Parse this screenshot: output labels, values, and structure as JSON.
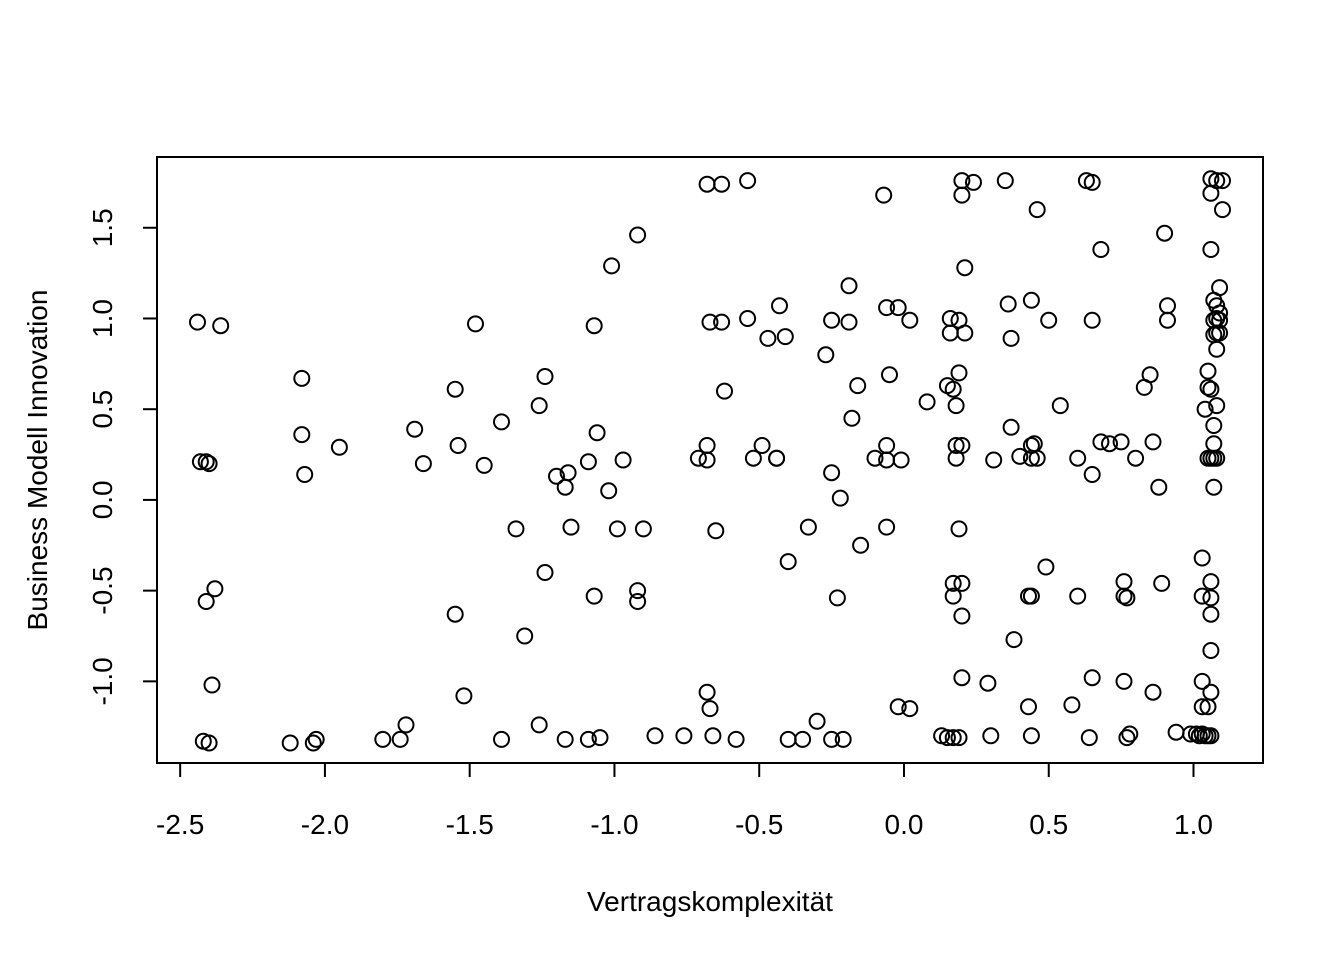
{
  "chart_data": {
    "type": "scatter",
    "title": "",
    "xlabel": "Vertragskomplexität",
    "ylabel": "Business Modell Innovation",
    "xlim": [
      -2.58,
      1.24
    ],
    "ylim": [
      -1.45,
      1.89
    ],
    "xticks": [
      -2.5,
      -2.0,
      -1.5,
      -1.0,
      -0.5,
      0.0,
      0.5,
      1.0
    ],
    "xtick_labels": [
      "-2.5",
      "-2.0",
      "-1.5",
      "-1.0",
      "-0.5",
      "0.0",
      "0.5",
      "1.0"
    ],
    "yticks": [
      -1.0,
      -0.5,
      0.0,
      0.5,
      1.0,
      1.5
    ],
    "ytick_labels": [
      "-1.0",
      "-0.5",
      "0.0",
      "0.5",
      "1.0",
      "1.5"
    ],
    "grid": false,
    "legend": false,
    "points": [
      [
        -2.44,
        0.98
      ],
      [
        -2.36,
        0.96
      ],
      [
        -2.43,
        0.21
      ],
      [
        -2.41,
        0.21
      ],
      [
        -2.4,
        0.2
      ],
      [
        -2.41,
        -0.56
      ],
      [
        -2.38,
        -0.49
      ],
      [
        -2.39,
        -1.02
      ],
      [
        -2.42,
        -1.33
      ],
      [
        -2.4,
        -1.34
      ],
      [
        -2.08,
        0.67
      ],
      [
        -2.08,
        0.36
      ],
      [
        -2.07,
        0.14
      ],
      [
        -1.95,
        0.29
      ],
      [
        -2.12,
        -1.34
      ],
      [
        -2.04,
        -1.34
      ],
      [
        -2.03,
        -1.32
      ],
      [
        -1.8,
        -1.32
      ],
      [
        -1.74,
        -1.32
      ],
      [
        -1.72,
        -1.24
      ],
      [
        -1.69,
        0.39
      ],
      [
        -1.66,
        0.2
      ],
      [
        -1.55,
        0.61
      ],
      [
        -1.54,
        0.3
      ],
      [
        -1.48,
        0.97
      ],
      [
        -1.45,
        0.19
      ],
      [
        -1.55,
        -0.63
      ],
      [
        -1.52,
        -1.08
      ],
      [
        -1.39,
        0.43
      ],
      [
        -1.39,
        -1.32
      ],
      [
        -1.34,
        -0.16
      ],
      [
        -1.31,
        -0.75
      ],
      [
        -1.26,
        0.52
      ],
      [
        -1.24,
        0.68
      ],
      [
        -1.24,
        -0.4
      ],
      [
        -1.26,
        -1.24
      ],
      [
        -1.2,
        0.13
      ],
      [
        -1.17,
        0.07
      ],
      [
        -1.16,
        0.15
      ],
      [
        -1.15,
        -0.15
      ],
      [
        -1.17,
        -1.32
      ],
      [
        -1.09,
        0.21
      ],
      [
        -1.07,
        0.96
      ],
      [
        -1.06,
        0.37
      ],
      [
        -1.07,
        -0.53
      ],
      [
        -1.09,
        -1.32
      ],
      [
        -1.05,
        -1.31
      ],
      [
        -1.01,
        1.29
      ],
      [
        -1.02,
        0.05
      ],
      [
        -0.99,
        -0.16
      ],
      [
        -0.97,
        0.22
      ],
      [
        -0.92,
        1.46
      ],
      [
        -0.92,
        -0.5
      ],
      [
        -0.92,
        -0.56
      ],
      [
        -0.9,
        -0.16
      ],
      [
        -0.86,
        -1.3
      ],
      [
        -0.76,
        -1.3
      ],
      [
        -0.71,
        0.23
      ],
      [
        -0.68,
        1.74
      ],
      [
        -0.68,
        0.3
      ],
      [
        -0.68,
        0.22
      ],
      [
        -0.67,
        0.98
      ],
      [
        -0.68,
        -1.06
      ],
      [
        -0.67,
        -1.15
      ],
      [
        -0.66,
        -1.3
      ],
      [
        -0.63,
        1.74
      ],
      [
        -0.63,
        0.98
      ],
      [
        -0.62,
        0.6
      ],
      [
        -0.65,
        -0.17
      ],
      [
        -0.58,
        -1.32
      ],
      [
        -0.54,
        1.76
      ],
      [
        -0.54,
        1.0
      ],
      [
        -0.52,
        0.23
      ],
      [
        -0.49,
        0.3
      ],
      [
        -0.47,
        0.89
      ],
      [
        -0.44,
        0.23
      ],
      [
        -0.44,
        0.23
      ],
      [
        -0.43,
        1.07
      ],
      [
        -0.41,
        0.9
      ],
      [
        -0.4,
        -0.34
      ],
      [
        -0.4,
        -1.32
      ],
      [
        -0.35,
        -1.32
      ],
      [
        -0.33,
        -0.15
      ],
      [
        -0.3,
        -1.22
      ],
      [
        -0.27,
        0.8
      ],
      [
        -0.25,
        0.99
      ],
      [
        -0.25,
        0.15
      ],
      [
        -0.23,
        -0.54
      ],
      [
        -0.22,
        0.01
      ],
      [
        -0.25,
        -1.32
      ],
      [
        -0.21,
        -1.32
      ],
      [
        -0.19,
        1.18
      ],
      [
        -0.19,
        0.98
      ],
      [
        -0.18,
        0.45
      ],
      [
        -0.16,
        0.63
      ],
      [
        -0.15,
        -0.25
      ],
      [
        -0.1,
        0.23
      ],
      [
        -0.07,
        1.68
      ],
      [
        -0.06,
        1.06
      ],
      [
        -0.06,
        0.3
      ],
      [
        -0.06,
        0.22
      ],
      [
        -0.06,
        -0.15
      ],
      [
        -0.05,
        0.69
      ],
      [
        -0.02,
        1.06
      ],
      [
        -0.01,
        0.22
      ],
      [
        0.02,
        0.99
      ],
      [
        -0.02,
        -1.14
      ],
      [
        0.02,
        -1.15
      ],
      [
        0.08,
        0.54
      ],
      [
        0.15,
        0.63
      ],
      [
        0.16,
        1.0
      ],
      [
        0.16,
        0.92
      ],
      [
        0.17,
        0.61
      ],
      [
        0.18,
        0.52
      ],
      [
        0.18,
        0.3
      ],
      [
        0.18,
        0.23
      ],
      [
        0.19,
        0.7
      ],
      [
        0.19,
        0.99
      ],
      [
        0.21,
        0.92
      ],
      [
        0.2,
        0.3
      ],
      [
        0.19,
        -0.16
      ],
      [
        0.17,
        -0.46
      ],
      [
        0.17,
        -0.53
      ],
      [
        0.2,
        -0.46
      ],
      [
        0.2,
        -0.64
      ],
      [
        0.2,
        -0.98
      ],
      [
        0.2,
        1.76
      ],
      [
        0.2,
        1.68
      ],
      [
        0.21,
        1.28
      ],
      [
        0.24,
        1.75
      ],
      [
        0.13,
        -1.3
      ],
      [
        0.15,
        -1.31
      ],
      [
        0.17,
        -1.31
      ],
      [
        0.19,
        -1.31
      ],
      [
        0.3,
        -1.3
      ],
      [
        0.29,
        -1.01
      ],
      [
        0.31,
        0.22
      ],
      [
        0.35,
        1.76
      ],
      [
        0.36,
        1.08
      ],
      [
        0.37,
        0.89
      ],
      [
        0.37,
        0.4
      ],
      [
        0.38,
        -0.77
      ],
      [
        0.4,
        0.24
      ],
      [
        0.44,
        1.1
      ],
      [
        0.44,
        0.3
      ],
      [
        0.45,
        0.31
      ],
      [
        0.44,
        0.23
      ],
      [
        0.46,
        0.23
      ],
      [
        0.43,
        -0.53
      ],
      [
        0.44,
        -0.53
      ],
      [
        0.43,
        -1.14
      ],
      [
        0.44,
        -1.3
      ],
      [
        0.46,
        1.6
      ],
      [
        0.49,
        -0.37
      ],
      [
        0.5,
        0.99
      ],
      [
        0.54,
        0.52
      ],
      [
        0.58,
        -1.13
      ],
      [
        0.6,
        0.23
      ],
      [
        0.6,
        -0.53
      ],
      [
        0.63,
        1.76
      ],
      [
        0.65,
        1.75
      ],
      [
        0.65,
        0.99
      ],
      [
        0.65,
        0.14
      ],
      [
        0.68,
        1.38
      ],
      [
        0.68,
        0.32
      ],
      [
        0.71,
        0.31
      ],
      [
        0.75,
        0.32
      ],
      [
        0.76,
        -0.45
      ],
      [
        0.76,
        -0.53
      ],
      [
        0.77,
        -0.54
      ],
      [
        0.76,
        -1.0
      ],
      [
        0.65,
        -0.98
      ],
      [
        0.64,
        -1.31
      ],
      [
        0.77,
        -1.31
      ],
      [
        0.78,
        -1.29
      ],
      [
        0.8,
        0.23
      ],
      [
        0.83,
        0.62
      ],
      [
        0.85,
        0.69
      ],
      [
        0.86,
        0.32
      ],
      [
        0.88,
        0.07
      ],
      [
        0.86,
        -1.06
      ],
      [
        0.89,
        -0.46
      ],
      [
        0.9,
        1.47
      ],
      [
        0.91,
        1.07
      ],
      [
        0.91,
        0.99
      ],
      [
        0.94,
        -1.28
      ],
      [
        0.99,
        -1.29
      ],
      [
        1.01,
        -1.29
      ],
      [
        1.02,
        -1.3
      ],
      [
        1.03,
        -1.29
      ],
      [
        1.03,
        -1.14
      ],
      [
        1.03,
        -1.0
      ],
      [
        1.03,
        -0.53
      ],
      [
        1.03,
        -0.32
      ],
      [
        1.04,
        0.5
      ],
      [
        1.04,
        -1.3
      ],
      [
        1.05,
        0.71
      ],
      [
        1.05,
        0.62
      ],
      [
        1.05,
        0.23
      ],
      [
        1.05,
        -1.14
      ],
      [
        1.05,
        -1.3
      ],
      [
        1.06,
        1.77
      ],
      [
        1.06,
        1.69
      ],
      [
        1.06,
        1.38
      ],
      [
        1.06,
        0.61
      ],
      [
        1.06,
        0.23
      ],
      [
        1.06,
        -0.45
      ],
      [
        1.06,
        -0.54
      ],
      [
        1.06,
        -0.63
      ],
      [
        1.06,
        -0.83
      ],
      [
        1.06,
        -1.06
      ],
      [
        1.06,
        -1.3
      ],
      [
        1.07,
        1.1
      ],
      [
        1.07,
        0.99
      ],
      [
        1.07,
        0.91
      ],
      [
        1.07,
        0.41
      ],
      [
        1.07,
        0.31
      ],
      [
        1.07,
        0.07
      ],
      [
        1.07,
        0.23
      ],
      [
        1.08,
        1.76
      ],
      [
        1.08,
        1.07
      ],
      [
        1.08,
        1.0
      ],
      [
        1.08,
        0.92
      ],
      [
        1.08,
        0.83
      ],
      [
        1.08,
        0.52
      ],
      [
        1.08,
        0.23
      ],
      [
        1.09,
        1.17
      ],
      [
        1.09,
        1.03
      ],
      [
        1.09,
        0.99
      ],
      [
        1.09,
        0.92
      ],
      [
        1.1,
        1.76
      ],
      [
        1.1,
        1.6
      ]
    ]
  }
}
